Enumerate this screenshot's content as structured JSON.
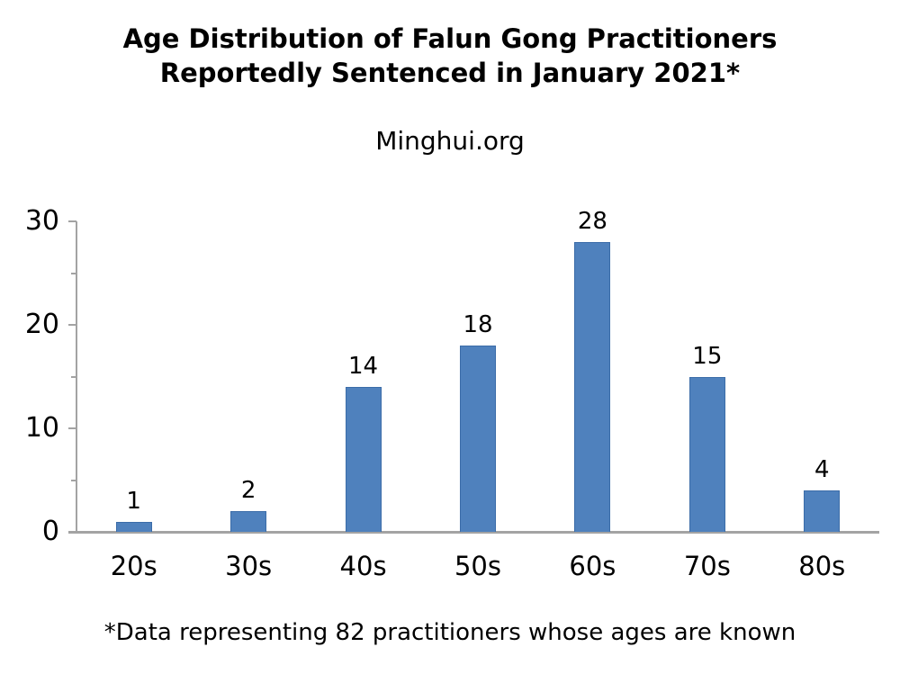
{
  "header": {
    "title_line1": "Age Distribution of Falun Gong Practitioners",
    "title_line2": "Reportedly Sentenced in January 2021*",
    "subtitle": "Minghui.org"
  },
  "footnote": {
    "text": "*Data representing 82 practitioners whose ages are known"
  },
  "chart_data": {
    "type": "bar",
    "title": "Age Distribution of Falun Gong Practitioners Reportedly Sentenced in January 2021*",
    "subtitle": "Minghui.org",
    "categories": [
      "20s",
      "30s",
      "40s",
      "50s",
      "60s",
      "70s",
      "80s"
    ],
    "values": [
      1,
      2,
      14,
      18,
      28,
      15,
      4
    ],
    "xlabel": "",
    "ylabel": "",
    "ylim": [
      0,
      30
    ],
    "yticks_major": [
      0,
      10,
      20,
      30
    ],
    "yticks_minor": [
      5,
      15,
      25
    ],
    "grid": false,
    "legend": "none",
    "data_labels": [
      1,
      2,
      14,
      18,
      28,
      15,
      4
    ],
    "footnote": "*Data representing 82 practitioners whose ages are known",
    "bar_color": "#4f81bd",
    "bar_border_color": "#3b6ca8",
    "axis_color": "#a3a3a3",
    "text_color": "#000000",
    "background_color": "#ffffff"
  }
}
